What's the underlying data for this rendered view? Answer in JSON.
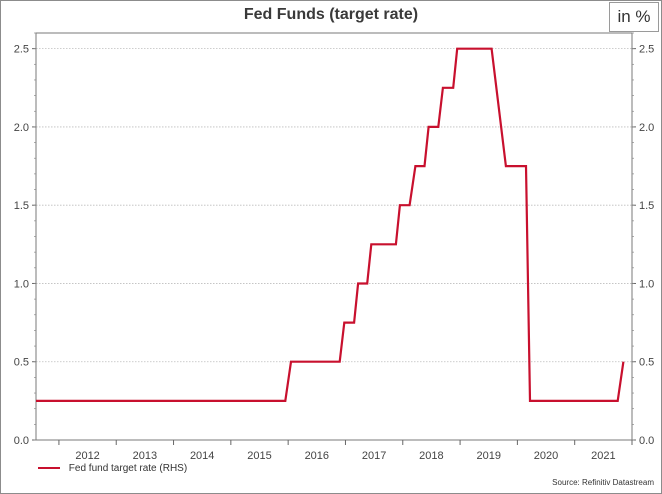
{
  "chart_data": {
    "type": "line",
    "title": "Fed Funds (target rate)",
    "unit_label": "in %",
    "xlabel": "",
    "ylabel": "",
    "x_ticks": [
      "2012",
      "2013",
      "2014",
      "2015",
      "2016",
      "2017",
      "2018",
      "2019",
      "2020",
      "2021"
    ],
    "y_ticks": [
      "0.0",
      "0.5",
      "1.0",
      "1.5",
      "2.0",
      "2.5"
    ],
    "xlim": [
      2011.6,
      2022.0
    ],
    "ylim": [
      0,
      2.6
    ],
    "grid": true,
    "legend_position": "bottom-left",
    "series": [
      {
        "name": "Fed fund target rate (RHS)",
        "color": "#c8102e",
        "points": [
          [
            2011.6,
            0.25
          ],
          [
            2015.95,
            0.25
          ],
          [
            2016.05,
            0.5
          ],
          [
            2016.9,
            0.5
          ],
          [
            2016.98,
            0.75
          ],
          [
            2017.15,
            0.75
          ],
          [
            2017.22,
            1.0
          ],
          [
            2017.38,
            1.0
          ],
          [
            2017.45,
            1.25
          ],
          [
            2017.88,
            1.25
          ],
          [
            2017.95,
            1.5
          ],
          [
            2018.12,
            1.5
          ],
          [
            2018.22,
            1.75
          ],
          [
            2018.38,
            1.75
          ],
          [
            2018.45,
            2.0
          ],
          [
            2018.62,
            2.0
          ],
          [
            2018.7,
            2.25
          ],
          [
            2018.88,
            2.25
          ],
          [
            2018.95,
            2.5
          ],
          [
            2019.55,
            2.5
          ],
          [
            2019.8,
            1.75
          ],
          [
            2020.15,
            1.75
          ],
          [
            2020.22,
            0.25
          ],
          [
            2021.75,
            0.25
          ],
          [
            2021.85,
            0.5
          ]
        ]
      }
    ],
    "source": "Source: Refinitiv Datastream"
  }
}
